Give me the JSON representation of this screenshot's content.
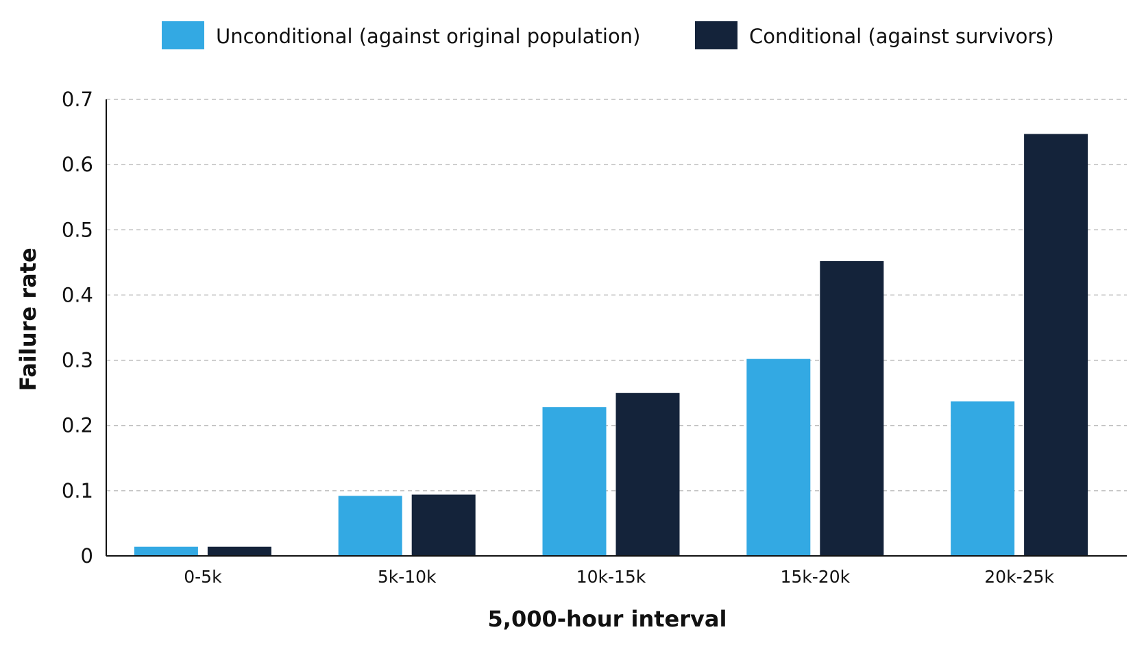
{
  "chart_data": {
    "type": "bar",
    "title": "",
    "xlabel": "5,000-hour interval",
    "ylabel": "Failure rate",
    "categories": [
      "0-5k",
      "5k-10k",
      "10k-15k",
      "15k-20k",
      "20k-25k"
    ],
    "series": [
      {
        "name": "Unconditional (against original population)",
        "color": "#33a9e3",
        "values": [
          0.014,
          0.092,
          0.228,
          0.302,
          0.237
        ]
      },
      {
        "name": "Conditional (against survivors)",
        "color": "#14233a",
        "values": [
          0.014,
          0.094,
          0.25,
          0.452,
          0.647
        ]
      }
    ],
    "ylim": [
      0,
      0.7
    ],
    "yticks": [
      0,
      0.1,
      0.2,
      0.3,
      0.4,
      0.5,
      0.6,
      0.7
    ],
    "ytick_labels": [
      "0",
      "0.1",
      "0.2",
      "0.3",
      "0.4",
      "0.5",
      "0.6",
      "0.7"
    ],
    "grid": true,
    "legend_position": "top"
  }
}
